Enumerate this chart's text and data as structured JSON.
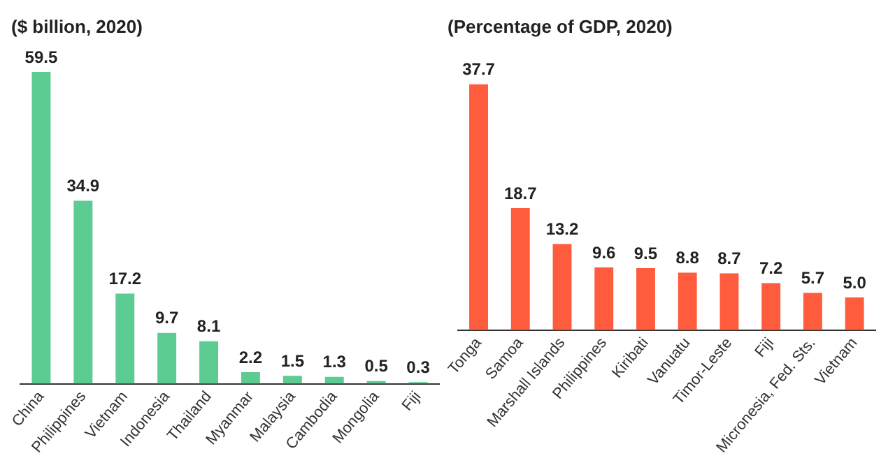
{
  "chart_data": [
    {
      "type": "bar",
      "title": "($ billion, 2020)",
      "categories": [
        "China",
        "Philippines",
        "Vietnam",
        "Indonesia",
        "Thailand",
        "Myanmar",
        "Malaysia",
        "Cambodia",
        "Mongolia",
        "Fiji"
      ],
      "values": [
        59.5,
        34.9,
        17.2,
        9.7,
        8.1,
        2.2,
        1.5,
        1.3,
        0.5,
        0.3
      ],
      "color": "#5ccc92",
      "data_labels": true
    },
    {
      "type": "bar",
      "title": "(Percentage of GDP, 2020)",
      "categories": [
        "Tonga",
        "Samoa",
        "Marshall Islands",
        "Philippines",
        "Kiribati",
        "Vanuatu",
        "Timor-Leste",
        "Fiji",
        "Micronesia, Fed. Sts.",
        "Vietnam"
      ],
      "values": [
        37.7,
        18.7,
        13.2,
        9.6,
        9.5,
        8.8,
        8.7,
        7.2,
        5.7,
        5.0
      ],
      "value_labels": [
        "37.7",
        "18.7",
        "13.2",
        "9.6",
        "9.5",
        "8.8",
        "8.7",
        "7.2",
        "5.7",
        "5.0"
      ],
      "color": "#ff5b3d"
    }
  ]
}
